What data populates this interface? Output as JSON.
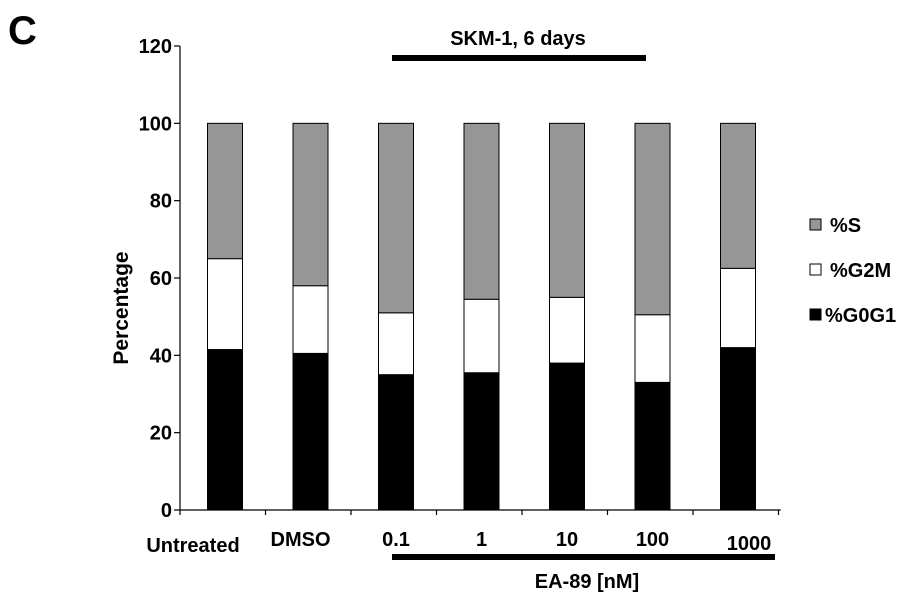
{
  "chart_data": {
    "panel_letter": "C",
    "type": "stacked-bar",
    "title": "SKM-1, 6 days",
    "ylabel": "Percentage",
    "xlabel": "EA-89 [nM]",
    "ylim": [
      0,
      120
    ],
    "yticks": [
      0,
      20,
      40,
      60,
      80,
      100,
      120
    ],
    "categories": [
      "Untreated",
      "DMSO",
      "0.1",
      "1",
      "10",
      "100",
      "1000"
    ],
    "series": [
      {
        "name": "%G0G1",
        "color": "#000000",
        "values": [
          41.5,
          40.5,
          35,
          35.5,
          38,
          33,
          42
        ]
      },
      {
        "name": "%G2M",
        "color": "#ffffff",
        "values": [
          23.5,
          17.5,
          16,
          19,
          17,
          17.5,
          20.5
        ]
      },
      {
        "name": "%S",
        "color": "#969696",
        "values": [
          35,
          42,
          49,
          45.5,
          45,
          49.5,
          37.5
        ]
      }
    ],
    "legend_order": [
      "%S",
      "%G2M",
      "%G0G1"
    ],
    "legend_position": "right",
    "grid": false
  }
}
